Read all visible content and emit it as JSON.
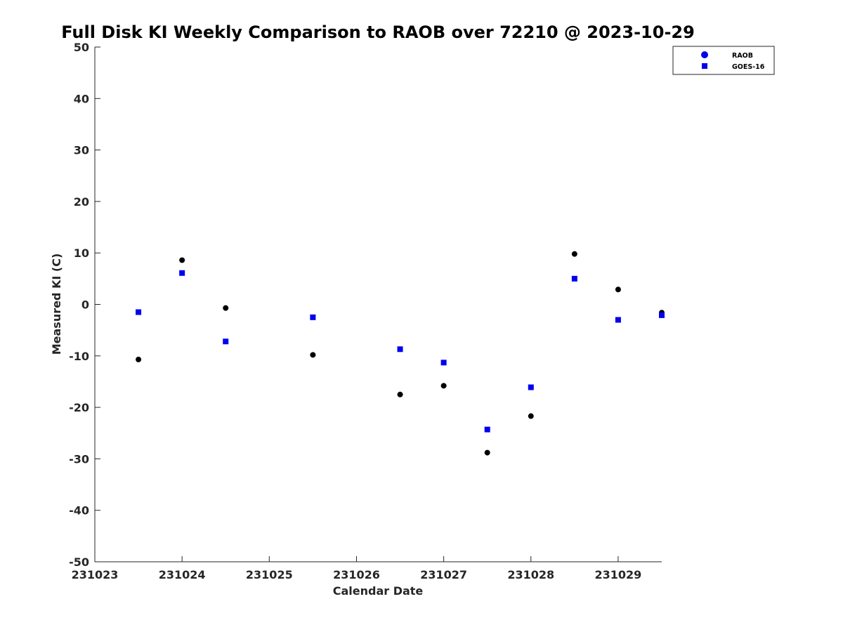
{
  "chart_data": {
    "type": "scatter",
    "title": "Full Disk KI Weekly Comparison to RAOB over 72210 @ 2023-10-29",
    "xlabel": "Calendar Date",
    "ylabel": "Measured KI (C)",
    "xlim": [
      0,
      6.5
    ],
    "ylim": [
      -50,
      50
    ],
    "x_ticks": [
      0,
      1,
      2,
      3,
      4,
      5,
      6
    ],
    "x_tick_labels": [
      "231023",
      "231024",
      "231025",
      "231026",
      "231027",
      "231028",
      "231029"
    ],
    "y_ticks": [
      -50,
      -40,
      -30,
      -20,
      -10,
      0,
      10,
      20,
      30,
      40,
      50
    ],
    "y_tick_labels": [
      "-50",
      "-40",
      "-30",
      "-20",
      "-10",
      "0",
      "10",
      "20",
      "30",
      "40",
      "50"
    ],
    "grid": false,
    "legend_position": "top-right",
    "series": [
      {
        "name": "RAOB",
        "marker": "circle",
        "color": "#000000",
        "legend_color": "#0000ee",
        "x": [
          0.5,
          1.0,
          1.5,
          2.5,
          3.5,
          4.0,
          4.5,
          5.0,
          5.5,
          6.0,
          6.5
        ],
        "y": [
          -10.7,
          8.6,
          -0.7,
          -9.8,
          -17.5,
          -15.8,
          -28.8,
          -21.7,
          9.8,
          2.9,
          -1.6
        ]
      },
      {
        "name": "GOES-16",
        "marker": "square",
        "color": "#0000ee",
        "legend_color": "#0000ee",
        "x": [
          0.5,
          1.0,
          1.5,
          2.5,
          3.5,
          4.0,
          4.5,
          5.0,
          5.5,
          6.0,
          6.5
        ],
        "y": [
          -1.5,
          6.1,
          -7.2,
          -2.5,
          -8.7,
          -11.3,
          -24.3,
          -16.1,
          5.0,
          -3.0,
          -2.1
        ]
      }
    ]
  }
}
